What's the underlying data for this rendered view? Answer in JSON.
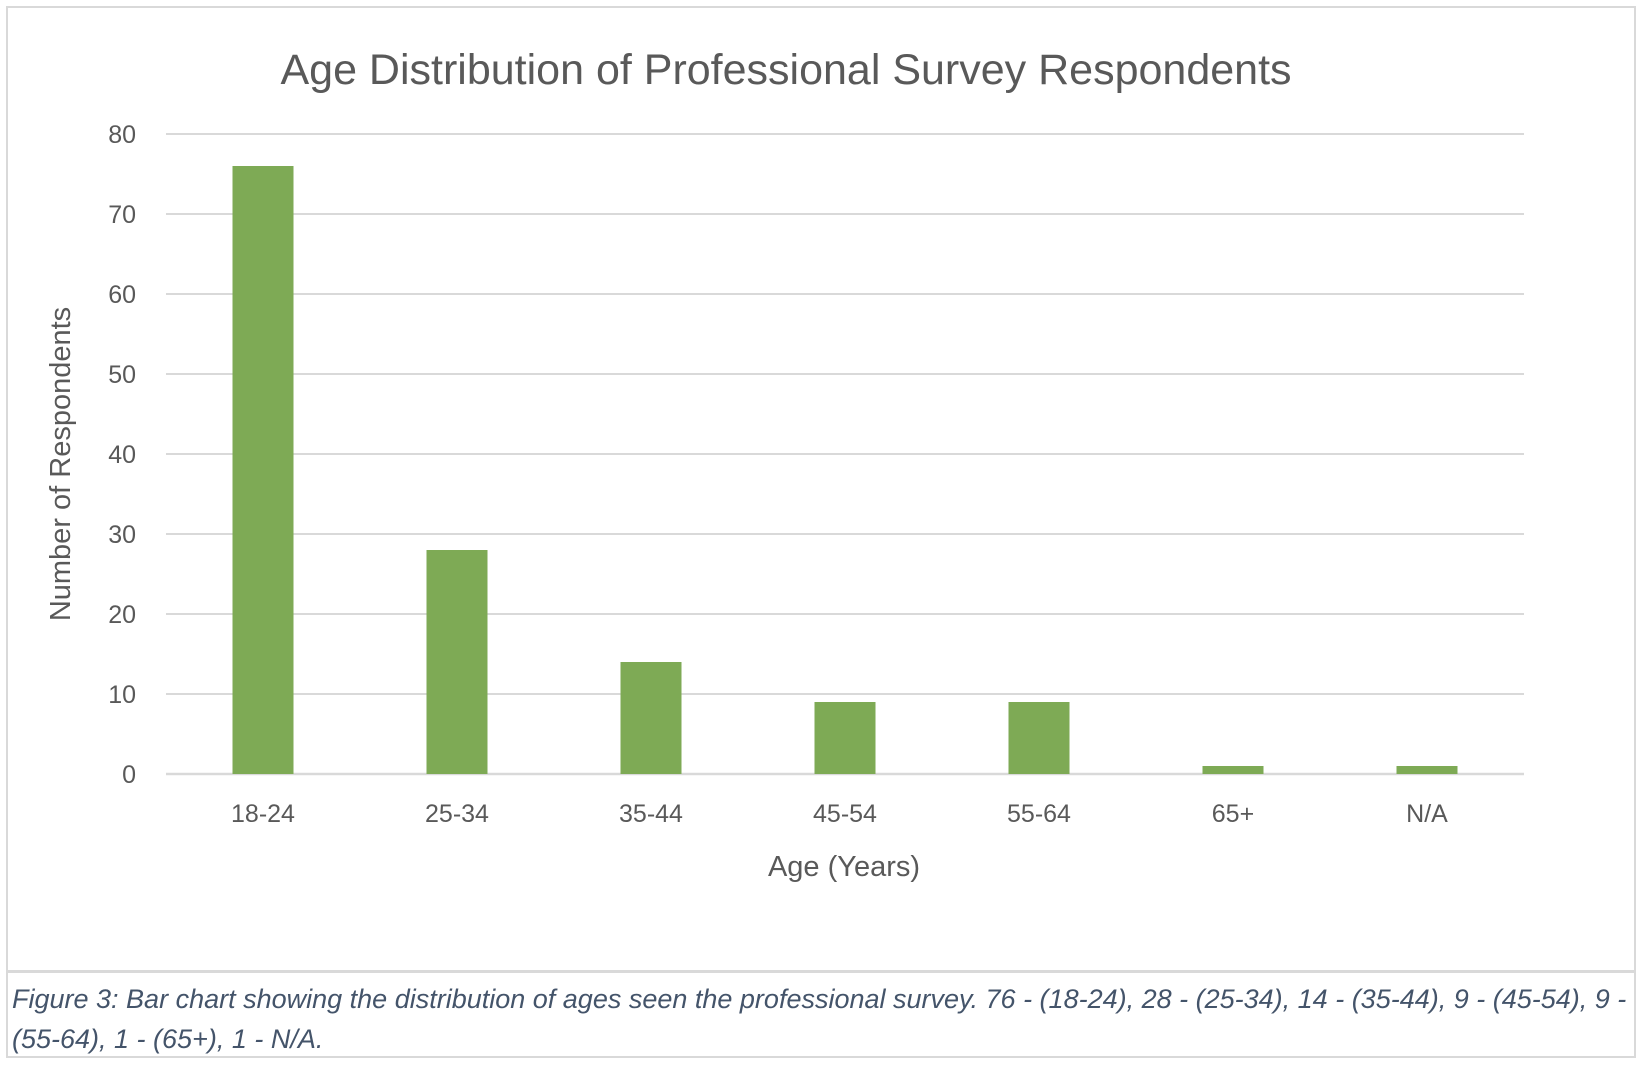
{
  "chart_data": {
    "type": "bar",
    "title": "Age  Distribution of Professional Survey Respondents",
    "xlabel": "Age (Years)",
    "ylabel": "Number of Respondents",
    "categories": [
      "18-24",
      "25-34",
      "35-44",
      "45-54",
      "55-64",
      "65+",
      "N/A"
    ],
    "values": [
      76,
      28,
      14,
      9,
      9,
      1,
      1
    ],
    "ylim": [
      0,
      80
    ],
    "yticks": [
      0,
      10,
      20,
      30,
      40,
      50,
      60,
      70,
      80
    ],
    "grid": true,
    "bar_color": "#7eaa55",
    "grid_color": "#d9d9d9",
    "text_color": "#595959"
  },
  "caption": "Figure 3: Bar chart showing the distribution of ages seen the professional survey. 76 - (18-24), 28 - (25-34), 14 - (35-44), 9 - (45-54), 9 - (55-64), 1 - (65+), 1 - N/A.",
  "caption_color": "#44546a"
}
